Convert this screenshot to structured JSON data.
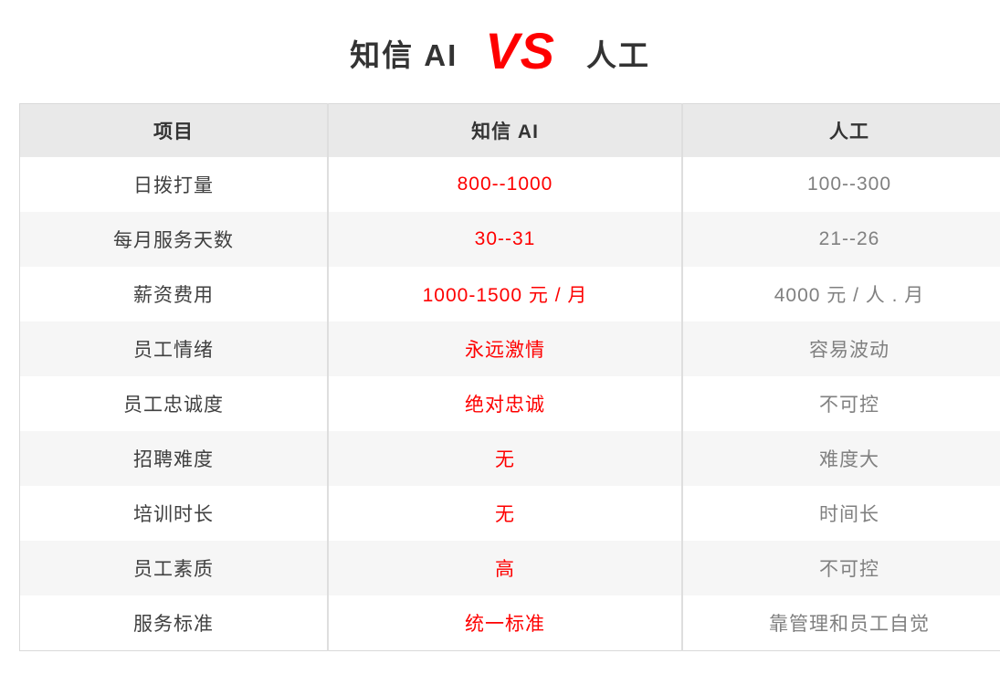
{
  "title": {
    "left": "知信 AI",
    "vs": "VS",
    "right": "人工"
  },
  "colors": {
    "accent_red": "#fe0000",
    "header_bg": "#e9e9e9",
    "row_alt_bg": "#f6f6f6",
    "border": "#d9d9d9",
    "title_text": "#333333",
    "item_text": "#404040",
    "human_text": "#808080"
  },
  "chart_data": {
    "type": "table",
    "title": "知信 AI VS 人工",
    "columns": [
      "项目",
      "知信 AI",
      "人工"
    ],
    "rows": [
      {
        "item": "日拨打量",
        "ai": "800--1000",
        "human": "100--300"
      },
      {
        "item": "每月服务天数",
        "ai": "30--31",
        "human": "21--26"
      },
      {
        "item": "薪资费用",
        "ai": "1000-1500 元 / 月",
        "human": "4000 元 / 人 . 月"
      },
      {
        "item": "员工情绪",
        "ai": "永远激情",
        "human": "容易波动"
      },
      {
        "item": "员工忠诚度",
        "ai": "绝对忠诚",
        "human": "不可控"
      },
      {
        "item": "招聘难度",
        "ai": "无",
        "human": "难度大"
      },
      {
        "item": "培训时长",
        "ai": "无",
        "human": "时间长"
      },
      {
        "item": "员工素质",
        "ai": "高",
        "human": "不可控"
      },
      {
        "item": "服务标准",
        "ai": "统一标准",
        "human": "靠管理和员工自觉"
      }
    ],
    "layout": {
      "header_row": true,
      "zebra_striping": true,
      "value_color_ai_column": "#fe0000",
      "value_color_human_column": "#808080"
    }
  }
}
